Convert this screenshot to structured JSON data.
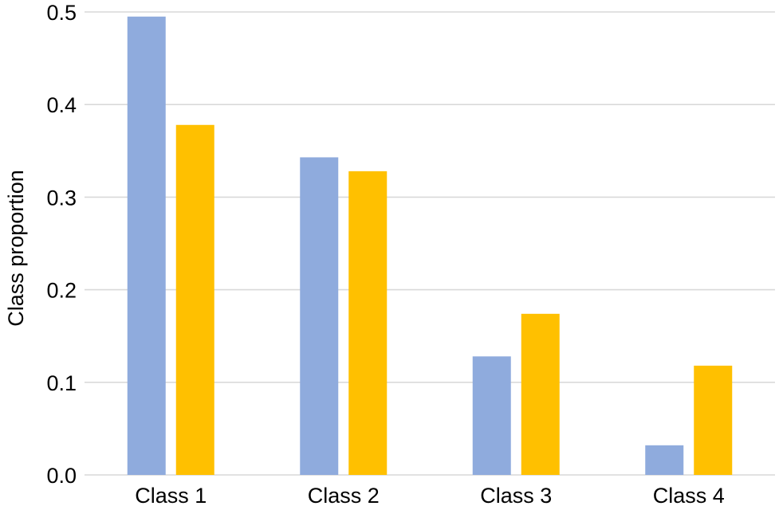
{
  "chart_data": {
    "type": "bar",
    "title": "",
    "xlabel": "",
    "ylabel": "Class proportion",
    "categories": [
      "Class 1",
      "Class 2",
      "Class 3",
      "Class 4"
    ],
    "series": [
      {
        "values": [
          0.495,
          0.343,
          0.128,
          0.032
        ],
        "color": "#8FABDD"
      },
      {
        "values": [
          0.378,
          0.328,
          0.174,
          0.118
        ],
        "color": "#FFC000"
      }
    ],
    "ylim": [
      0.0,
      0.5
    ],
    "yticks": [
      "0.0",
      "0.1",
      "0.2",
      "0.3",
      "0.4",
      "0.5"
    ],
    "grid": true,
    "legend": "none",
    "gridline_color": "#D9D9D9"
  }
}
